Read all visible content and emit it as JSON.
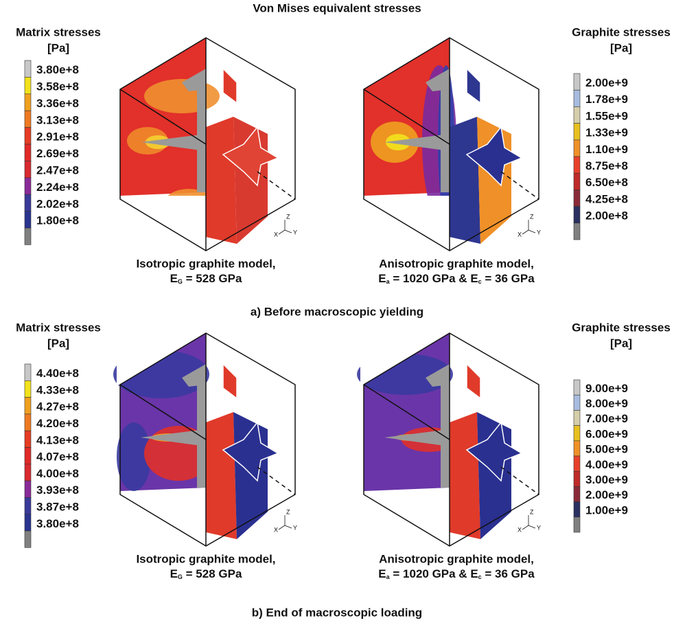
{
  "title": "Von Mises equivalent stresses",
  "axes_triad": {
    "z": "Z",
    "x": "X",
    "y": "Y"
  },
  "panels": [
    {
      "label": "a) Before macroscopic yielding",
      "matrix_legend": {
        "title": "Matrix stresses",
        "unit": "[Pa]",
        "labels": [
          "3.80e+8",
          "3.58e+8",
          "3.36e+8",
          "3.13e+8",
          "2.91e+8",
          "2.69e+8",
          "2.47e+8",
          "2.24e+8",
          "2.02e+8",
          "1.80e+8"
        ],
        "colors": [
          "#c8c8c8",
          "#f2e21c",
          "#f0a020",
          "#ee7a22",
          "#e63c24",
          "#e02a28",
          "#d82a30",
          "#8a2a98",
          "#3a3a9a",
          "#2a3490",
          "#808080"
        ]
      },
      "graphite_legend": {
        "title": "Graphite stresses",
        "unit": "[Pa]",
        "labels": [
          "2.00e+9",
          "1.78e+9",
          "1.55e+9",
          "1.33e+9",
          "1.10e+9",
          "8.75e+8",
          "6.50e+8",
          "4.25e+8",
          "2.00e+8"
        ],
        "colors": [
          "#c8c8c8",
          "#a8bce0",
          "#d4ceaa",
          "#e8c020",
          "#f09028",
          "#e8402a",
          "#c02a2a",
          "#8a2a38",
          "#2a3060",
          "#808080"
        ]
      },
      "captions": [
        {
          "line1": "Isotropic graphite model,",
          "line2": [
            [
              "E",
              "G",
              " = 528 GPa"
            ]
          ]
        },
        {
          "line1": "Anisotropic graphite model,",
          "line2": [
            [
              "E",
              "a",
              " = 1020 GPa & "
            ],
            [
              "E",
              "c",
              " = 36 GPa"
            ]
          ]
        }
      ]
    },
    {
      "label": "b) End of macroscopic loading",
      "matrix_legend": {
        "title": "Matrix stresses",
        "unit": "[Pa]",
        "labels": [
          "4.40e+8",
          "4.33e+8",
          "4.27e+8",
          "4.20e+8",
          "4.13e+8",
          "4.07e+8",
          "4.00e+8",
          "3.93e+8",
          "3.87e+8",
          "3.80e+8"
        ],
        "colors": [
          "#c8c8c8",
          "#f2e21c",
          "#f0a020",
          "#ee7a22",
          "#e63c24",
          "#e02a28",
          "#d82a30",
          "#8a2a98",
          "#3a3a9a",
          "#2a3490",
          "#808080"
        ]
      },
      "graphite_legend": {
        "title": "Graphite stresses",
        "unit": "[Pa]",
        "labels": [
          "9.00e+9",
          "8.00e+9",
          "7.00e+9",
          "6.00e+9",
          "5.00e+9",
          "4.00e+9",
          "3.00e+9",
          "2.00e+9",
          "1.00e+9"
        ],
        "colors": [
          "#c8c8c8",
          "#a8bce0",
          "#d4ceaa",
          "#e8c020",
          "#f09028",
          "#e8402a",
          "#c02a2a",
          "#8a2a38",
          "#2a3060",
          "#808080"
        ]
      },
      "captions": [
        {
          "line1": "Isotropic graphite model,",
          "line2": [
            [
              "E",
              "G",
              " = 528 GPa"
            ]
          ]
        },
        {
          "line1": "Anisotropic graphite model,",
          "line2": [
            [
              "E",
              "a",
              " = 1020 GPa & "
            ],
            [
              "E",
              "c",
              " = 36 GPa"
            ]
          ]
        }
      ]
    }
  ]
}
